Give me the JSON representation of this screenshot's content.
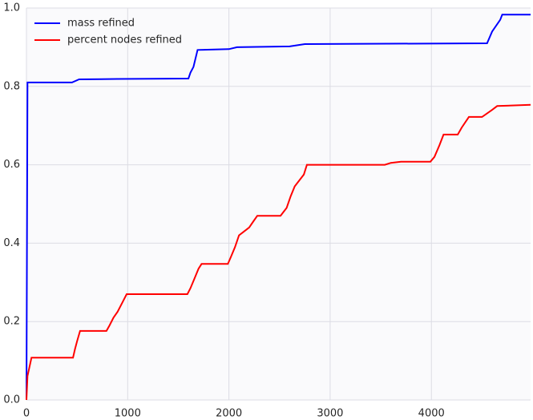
{
  "chart_data": {
    "type": "line",
    "series": [
      {
        "name": "mass refined",
        "color": "#0000ff",
        "x": [
          0,
          10,
          450,
          520,
          900,
          1600,
          1620,
          1650,
          1690,
          2000,
          2080,
          2600,
          2750,
          4550,
          4600,
          4680,
          4700,
          4980
        ],
        "values": [
          0,
          0.81,
          0.81,
          0.818,
          0.819,
          0.82,
          0.835,
          0.85,
          0.893,
          0.895,
          0.9,
          0.902,
          0.908,
          0.91,
          0.94,
          0.97,
          0.983,
          0.983
        ]
      },
      {
        "name": "percent nodes refined",
        "color": "#ff0000",
        "x": [
          0,
          10,
          50,
          460,
          480,
          500,
          530,
          790,
          820,
          860,
          900,
          950,
          990,
          1590,
          1620,
          1660,
          1700,
          1730,
          1990,
          2020,
          2060,
          2100,
          2150,
          2200,
          2240,
          2280,
          2510,
          2570,
          2610,
          2650,
          2740,
          2770,
          3540,
          3600,
          3700,
          3990,
          4030,
          4080,
          4120,
          4260,
          4300,
          4370,
          4500,
          4600,
          4650,
          4980
        ],
        "values": [
          0,
          0.061,
          0.108,
          0.108,
          0.13,
          0.15,
          0.176,
          0.176,
          0.19,
          0.21,
          0.225,
          0.25,
          0.27,
          0.27,
          0.285,
          0.31,
          0.335,
          0.347,
          0.347,
          0.365,
          0.39,
          0.42,
          0.43,
          0.44,
          0.455,
          0.47,
          0.47,
          0.49,
          0.52,
          0.545,
          0.575,
          0.6,
          0.6,
          0.605,
          0.608,
          0.608,
          0.62,
          0.65,
          0.677,
          0.677,
          0.695,
          0.722,
          0.722,
          0.74,
          0.75,
          0.753
        ]
      }
    ],
    "xlim": [
      0,
      4980
    ],
    "ylim": [
      0,
      1
    ],
    "xticks": [
      0,
      1000,
      2000,
      3000,
      4000
    ],
    "yticks": [
      {
        "value": 0,
        "label": "0.0"
      },
      0.2,
      0.4,
      0.6,
      0.8,
      {
        "value": 1,
        "label": "1.0"
      }
    ],
    "grid": true,
    "legend": "upper-left"
  }
}
